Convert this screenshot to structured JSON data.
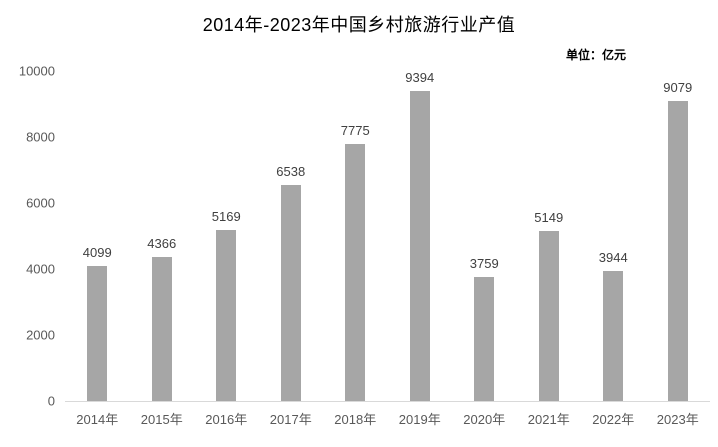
{
  "chart_data": {
    "type": "bar",
    "title": "2014年-2023年中国乡村旅游行业产值",
    "unit_label": "单位：亿元",
    "categories": [
      "2014年",
      "2015年",
      "2016年",
      "2017年",
      "2018年",
      "2019年",
      "2020年",
      "2021年",
      "2022年",
      "2023年"
    ],
    "values": [
      4099,
      4366,
      5169,
      6538,
      7775,
      9394,
      3759,
      5149,
      3944,
      9079
    ],
    "xlabel": "",
    "ylabel": "",
    "ylim": [
      0,
      10000
    ],
    "yticks": [
      0,
      2000,
      4000,
      6000,
      8000,
      10000
    ],
    "grid": false,
    "legend_position": "none",
    "colors": {
      "bar": "#a6a6a6",
      "data_label": "#404040",
      "axis_tick_label": "#595959",
      "axis_line": "#d9d9d9",
      "title": "#000000",
      "background": "#ffffff"
    }
  }
}
